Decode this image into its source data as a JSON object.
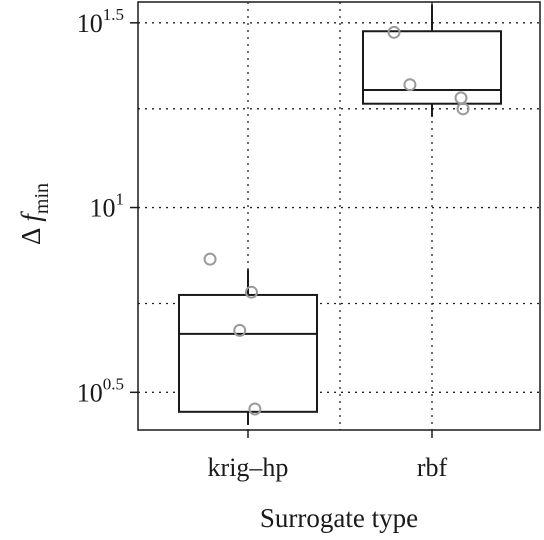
{
  "chart_data": {
    "type": "box",
    "xlabel": "Surrogate type",
    "ylabel": {
      "symbol": "Δ",
      "var": "f",
      "sub": "min"
    },
    "y_scale": "log10",
    "ylim": [
      2.5,
      36
    ],
    "grid": true,
    "grid_style": "dotted",
    "categories": [
      "krig–hp",
      "rbf"
    ],
    "y_ticks": [
      {
        "base": "10",
        "exp": "0.5",
        "value": 3.162
      },
      {
        "base": "10",
        "exp": "1",
        "value": 10.0
      },
      {
        "base": "10",
        "exp": "1.5",
        "value": 31.62
      }
    ],
    "minor_gridlines": [
      5.5,
      18.5
    ],
    "boxes": [
      {
        "category": "krig–hp",
        "whisker_low": 2.58,
        "q1": 2.8,
        "median": 4.55,
        "q3": 5.8,
        "whisker_high": 6.8,
        "points": [
          {
            "x_offset": -0.55,
            "y": 7.25
          },
          {
            "x_offset": 0.05,
            "y": 5.9
          },
          {
            "x_offset": -0.12,
            "y": 4.65
          },
          {
            "x_offset": 0.1,
            "y": 2.85
          }
        ]
      },
      {
        "category": "rbf",
        "whisker_low": 17.6,
        "q1": 19.1,
        "median": 20.8,
        "q3": 30.0,
        "whisker_high": 35.5,
        "points": [
          {
            "x_offset": -0.55,
            "y": 29.8
          },
          {
            "x_offset": -0.32,
            "y": 21.5
          },
          {
            "x_offset": 0.42,
            "y": 19.8
          },
          {
            "x_offset": 0.45,
            "y": 18.5
          }
        ]
      }
    ],
    "colors": {
      "box_stroke": "#1a1a1a",
      "grid": "#222222",
      "point_stroke": "#9a9a9a",
      "axis": "#1a1a1a"
    }
  }
}
